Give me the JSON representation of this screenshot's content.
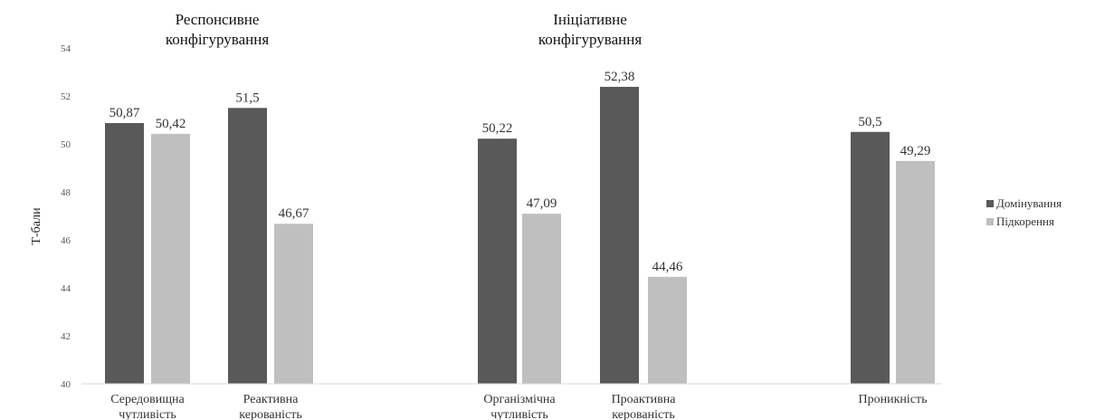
{
  "chart_data": {
    "type": "bar",
    "ylabel": "Т-бали",
    "ylim": [
      40,
      54
    ],
    "yticks": [
      40,
      42,
      44,
      46,
      48,
      50,
      52,
      54
    ],
    "grid": false,
    "legend_position": "right",
    "group_headers": [
      {
        "line1": "Респонсивне",
        "line2": "конфігурування"
      },
      {
        "line1": "Ініціативне",
        "line2": "конфігурування"
      }
    ],
    "categories": [
      {
        "line1": "Середовищна",
        "line2": "чутливість"
      },
      {
        "line1": "Реактивна",
        "line2": "керованість"
      },
      {
        "line1": "Організмічна",
        "line2": "чутливість"
      },
      {
        "line1": "Проактивна",
        "line2": "керованість"
      },
      {
        "line1": "Проникність",
        "line2": ""
      }
    ],
    "series": [
      {
        "name": "Домінування",
        "color": "#595959",
        "values": [
          50.87,
          51.5,
          50.22,
          52.38,
          50.5
        ],
        "labels": [
          "50,87",
          "51,5",
          "50,22",
          "52,38",
          "50,5"
        ]
      },
      {
        "name": "Підкорення",
        "color": "#bfbfbf",
        "values": [
          50.42,
          46.67,
          47.09,
          44.46,
          49.29
        ],
        "labels": [
          "50,42",
          "46,67",
          "47,09",
          "44,46",
          "49,29"
        ]
      }
    ]
  }
}
